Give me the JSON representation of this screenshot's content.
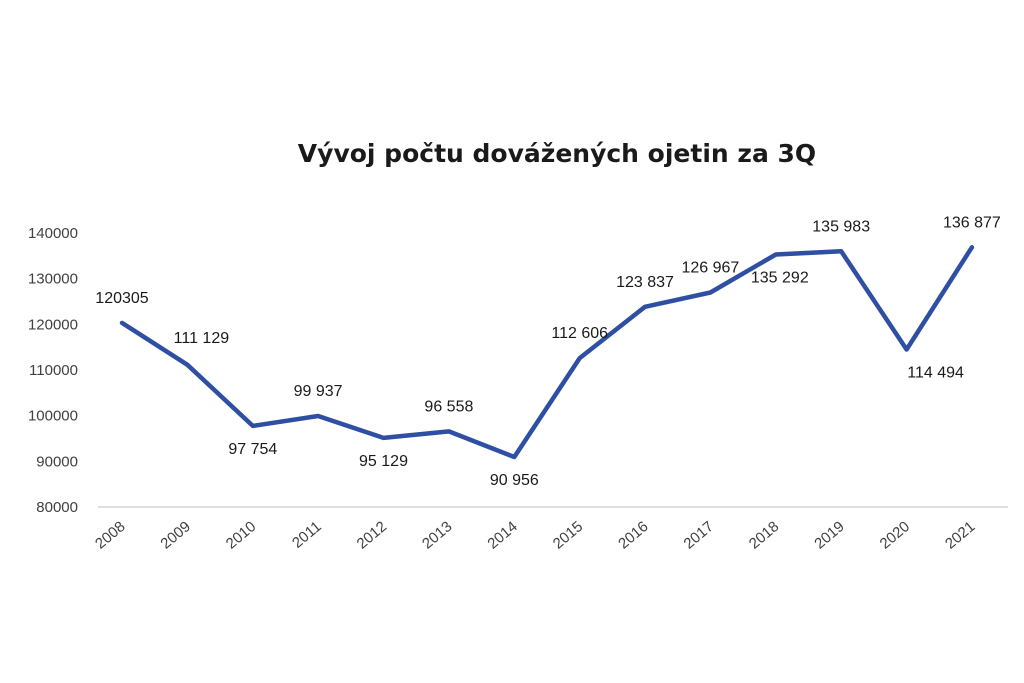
{
  "chart_data": {
    "type": "line",
    "title": "Vývoj počtu dovážených ojetin za 3Q",
    "xlabel": "",
    "ylabel": "",
    "categories": [
      "2008",
      "2009",
      "2010",
      "2011",
      "2012",
      "2013",
      "2014",
      "2015",
      "2016",
      "2017",
      "2018",
      "2019",
      "2020",
      "2021"
    ],
    "series": [
      {
        "values": [
          120305,
          111129,
          97754,
          99937,
          95129,
          96558,
          90956,
          112606,
          123837,
          126967,
          135292,
          135983,
          114494,
          136877
        ],
        "data_labels": [
          "120305",
          "111 129",
          "97 754",
          "99 937",
          "95 129",
          "96 558",
          "90 956",
          "112 606",
          "123 837",
          "126 967",
          "135 292",
          "135 983",
          "114 494",
          "136 877"
        ],
        "color": "#2e4fa3"
      }
    ],
    "ylim": [
      80000,
      140000
    ],
    "yticks": [
      "80000",
      "90000",
      "100000",
      "110000",
      "120000",
      "130000",
      "140000"
    ],
    "grid": false,
    "legend": "none"
  }
}
